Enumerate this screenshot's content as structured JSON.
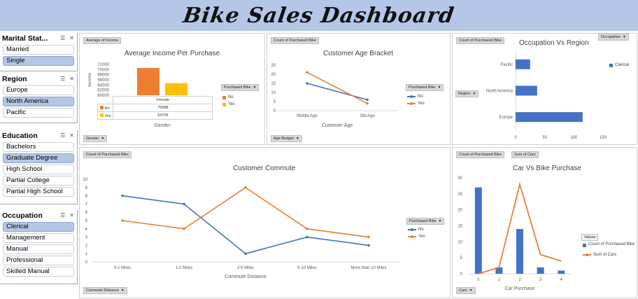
{
  "banner": {
    "title": "Bike Sales Dashboard"
  },
  "colors": {
    "blue": "#4472c4",
    "orange": "#ed7d31",
    "yellow": "#ffc000",
    "selected": "#b4c7e7"
  },
  "slicers": {
    "marital": {
      "title": "Marital Stat...",
      "items": [
        {
          "label": "Married",
          "selected": false
        },
        {
          "label": "Single",
          "selected": true
        }
      ]
    },
    "region": {
      "title": "Region",
      "items": [
        {
          "label": "Europe",
          "selected": false
        },
        {
          "label": "North America",
          "selected": true
        },
        {
          "label": "Pacific",
          "selected": false
        }
      ]
    },
    "education": {
      "title": "Education",
      "items": [
        {
          "label": "Bachelors",
          "selected": false
        },
        {
          "label": "Graduate Degree",
          "selected": true
        },
        {
          "label": "High School",
          "selected": false
        },
        {
          "label": "Partial College",
          "selected": false
        },
        {
          "label": "Partial High School",
          "selected": false
        }
      ]
    },
    "occupation": {
      "title": "Occupation",
      "items": [
        {
          "label": "Clerical",
          "selected": true
        },
        {
          "label": "Management",
          "selected": false
        },
        {
          "label": "Manual",
          "selected": false
        },
        {
          "label": "Professional",
          "selected": false
        },
        {
          "label": "Skilled Manual",
          "selected": false
        }
      ]
    }
  },
  "income": {
    "chip_top": "Average of Income",
    "chip_legend": "Purchased Bike",
    "chip_bottom": "Gender",
    "legend": [
      "No",
      "Yes"
    ],
    "table": {
      "header": "Female",
      "rows": [
        {
          "label": "No",
          "value": "70588"
        },
        {
          "label": "Yes",
          "value": "64706"
        }
      ]
    }
  },
  "age": {
    "chip_top": "Count of Purchased Bike",
    "chip_legend": "Purchased Bike",
    "chip_bottom": "Age Budget",
    "legend": [
      "No",
      "Yes"
    ]
  },
  "occ_region": {
    "chip_top": "Count of Purchased Bike",
    "chip_right": "Occupation",
    "chip_left": "Region",
    "legend": [
      "Clerical"
    ]
  },
  "commute": {
    "chip_top": "Count of Purchased Bike",
    "chip_legend": "Purchased Bike",
    "chip_bottom": "Commute Distance",
    "legend": [
      "No",
      "Yes"
    ]
  },
  "cars": {
    "chip_top1": "Count of Purchased Bike",
    "chip_top2": "Sum of Cars",
    "chip_bottom": "Cars",
    "legend_title": "Values",
    "legend": [
      "Count of Purchased Bike",
      "Sum of Cars"
    ]
  },
  "chart_data": [
    {
      "type": "bar",
      "title": "Average Income Per Purchase",
      "xlabel": "Gender",
      "ylabel": "Income",
      "categories": [
        "Female"
      ],
      "series": [
        {
          "name": "No",
          "values": [
            70588
          ]
        },
        {
          "name": "Yes",
          "values": [
            64706
          ]
        }
      ],
      "ylim": [
        60000,
        72000
      ],
      "yticks": [
        60000,
        62000,
        64000,
        66000,
        68000,
        70000,
        72000
      ]
    },
    {
      "type": "line",
      "title": "Customer Age Bracket",
      "xlabel": "Customer Age",
      "categories": [
        "Middle Age",
        "Old Age"
      ],
      "series": [
        {
          "name": "No",
          "values": [
            15,
            6
          ]
        },
        {
          "name": "Yes",
          "values": [
            21,
            4
          ]
        }
      ],
      "ylim": [
        0,
        25
      ],
      "yticks": [
        0,
        5,
        10,
        15,
        20,
        25
      ]
    },
    {
      "type": "bar",
      "orientation": "horizontal",
      "title": "Occupation Vs Region",
      "categories": [
        "Pacific",
        "North America",
        "Europe"
      ],
      "series": [
        {
          "name": "Clerical",
          "values": [
            25,
            37,
            115
          ]
        }
      ],
      "xlim": [
        0,
        150
      ],
      "xticks": [
        0,
        50,
        100,
        150
      ]
    },
    {
      "type": "line",
      "title": "Customer Commute",
      "xlabel": "Commute Distance",
      "categories": [
        "0-1 Miles",
        "1-2 Miles",
        "2-5 Miles",
        "5-10 Miles",
        "More than 10 Miles"
      ],
      "series": [
        {
          "name": "No",
          "values": [
            8,
            7,
            1,
            3,
            2
          ]
        },
        {
          "name": "Yes",
          "values": [
            5,
            4,
            9,
            4,
            3
          ]
        }
      ],
      "ylim": [
        0,
        10
      ],
      "yticks": [
        0,
        1,
        2,
        3,
        4,
        5,
        6,
        7,
        8,
        9,
        10
      ]
    },
    {
      "type": "bar",
      "title": "Car Vs Bike Purchase",
      "xlabel": "Car Purchase",
      "categories": [
        "0",
        "1",
        "2",
        "3",
        "4"
      ],
      "series": [
        {
          "name": "Count of Purchased Bike",
          "type": "bar",
          "values": [
            27,
            2,
            14,
            2,
            1
          ]
        },
        {
          "name": "Sum of Cars",
          "type": "line",
          "values": [
            0,
            2,
            28,
            6,
            4
          ]
        }
      ],
      "ylim": [
        0,
        30
      ],
      "yticks": [
        0,
        5,
        10,
        15,
        20,
        25,
        30
      ]
    }
  ]
}
